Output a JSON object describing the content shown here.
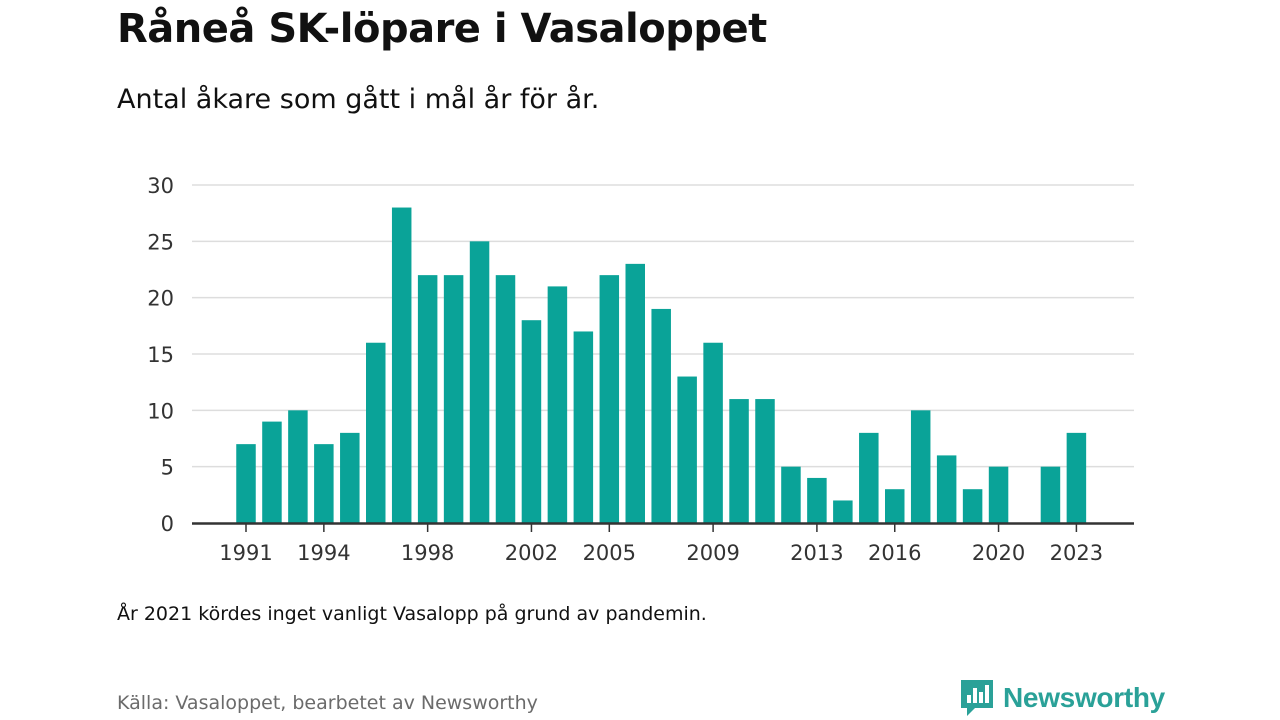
{
  "title": "Råneå SK-löpare i Vasaloppet",
  "subtitle": "Antal åkare som gått i mål år för år.",
  "note": "År 2021 kördes inget vanligt Vasalopp på grund av pandemin.",
  "source": "Källa: Vasaloppet, bearbetet av Newsworthy",
  "brand": {
    "name": "Newsworthy",
    "color": "#2aa198"
  },
  "chart_data": {
    "type": "bar",
    "categories": [
      1991,
      1992,
      1993,
      1994,
      1995,
      1996,
      1997,
      1998,
      1999,
      2000,
      2001,
      2002,
      2003,
      2004,
      2005,
      2006,
      2007,
      2008,
      2009,
      2010,
      2011,
      2012,
      2013,
      2014,
      2015,
      2016,
      2017,
      2018,
      2019,
      2020,
      2021,
      2022,
      2023
    ],
    "values": [
      7,
      9,
      10,
      7,
      8,
      16,
      28,
      22,
      22,
      25,
      22,
      18,
      21,
      17,
      22,
      23,
      19,
      13,
      16,
      11,
      11,
      5,
      4,
      2,
      8,
      3,
      10,
      6,
      3,
      5,
      null,
      5,
      8
    ],
    "x_tick_labels": [
      "1991",
      "1994",
      "1998",
      "2002",
      "2005",
      "2009",
      "2013",
      "2016",
      "2020",
      "2023"
    ],
    "y_ticks": [
      0,
      5,
      10,
      15,
      20,
      25,
      30
    ],
    "ylim": [
      0,
      30
    ],
    "grid": true,
    "bar_color": "#0aa398",
    "grid_color": "#dddddd",
    "axis_color": "#333333",
    "xlabel": "",
    "ylabel": ""
  }
}
